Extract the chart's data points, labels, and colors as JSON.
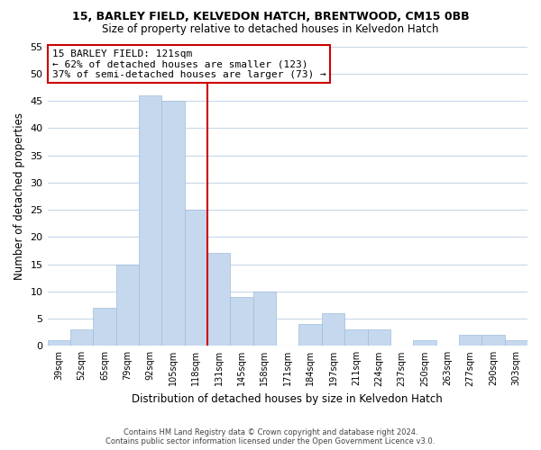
{
  "title1": "15, BARLEY FIELD, KELVEDON HATCH, BRENTWOOD, CM15 0BB",
  "title2": "Size of property relative to detached houses in Kelvedon Hatch",
  "xlabel": "Distribution of detached houses by size in Kelvedon Hatch",
  "ylabel": "Number of detached properties",
  "bin_labels": [
    "39sqm",
    "52sqm",
    "65sqm",
    "79sqm",
    "92sqm",
    "105sqm",
    "118sqm",
    "131sqm",
    "145sqm",
    "158sqm",
    "171sqm",
    "184sqm",
    "197sqm",
    "211sqm",
    "224sqm",
    "237sqm",
    "250sqm",
    "263sqm",
    "277sqm",
    "290sqm",
    "303sqm"
  ],
  "bar_values": [
    1,
    3,
    7,
    15,
    46,
    45,
    25,
    17,
    9,
    10,
    0,
    4,
    6,
    3,
    3,
    0,
    1,
    0,
    2,
    2,
    1
  ],
  "bar_color": "#c5d8ee",
  "bar_edge_color": "#a0bcd8",
  "highlight_bar_index": 6,
  "vline_color": "#cc0000",
  "annotation_title": "15 BARLEY FIELD: 121sqm",
  "annotation_line1": "← 62% of detached houses are smaller (123)",
  "annotation_line2": "37% of semi-detached houses are larger (73) →",
  "annotation_box_facecolor": "#ffffff",
  "annotation_box_edgecolor": "#cc0000",
  "ylim": [
    0,
    55
  ],
  "yticks": [
    0,
    5,
    10,
    15,
    20,
    25,
    30,
    35,
    40,
    45,
    50,
    55
  ],
  "footer1": "Contains HM Land Registry data © Crown copyright and database right 2024.",
  "footer2": "Contains public sector information licensed under the Open Government Licence v3.0.",
  "background_color": "#ffffff",
  "grid_color": "#c8d8e8"
}
